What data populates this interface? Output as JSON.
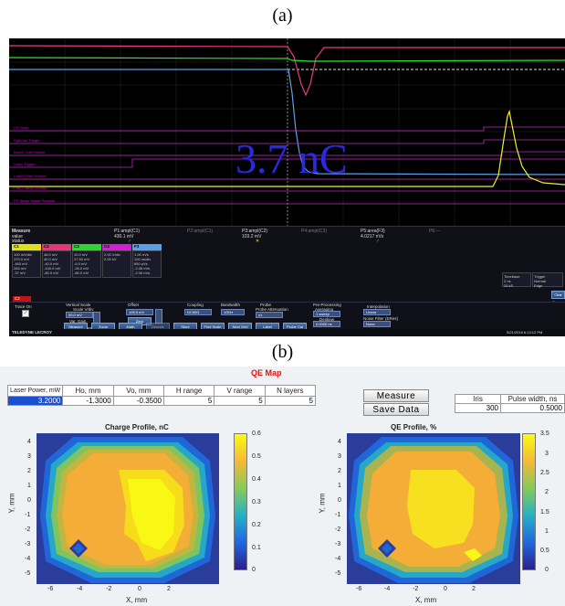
{
  "labels": {
    "a": "(a)",
    "b": "(b)"
  },
  "scope": {
    "annotation": "3.7 nC",
    "trace_labels": [
      "Ch Slope",
      "Cathode Trigger",
      "Bunch Gate Marker",
      "Laser Trigger",
      "Laser Pulse Monitor",
      "Fast Charge Monitor",
      "FC Beam Signal Readout"
    ],
    "measure": {
      "title": "Measure",
      "rows": [
        "value",
        "status"
      ],
      "params": [
        {
          "label": "P1:ampl(C1)",
          "value": "430.1 mV",
          "status": "✓"
        },
        {
          "label": "P2:ampl(C1)",
          "value": "---",
          "status": ""
        },
        {
          "label": "P3:ampl(C2)",
          "value": "103.2 mV",
          "status": "✕"
        },
        {
          "label": "P4:ampl(C3)",
          "value": "---",
          "status": ""
        },
        {
          "label": "P5:area(F3)",
          "value": "4.0217 nVs",
          "status": "✓"
        },
        {
          "label": "P6:---",
          "value": "",
          "status": ""
        }
      ]
    },
    "channels": [
      {
        "name": "C1",
        "color": "#e0e01a",
        "vals": [
          "100 mV/div",
          "370.0 mV",
          "-460 mV",
          "284 mV",
          "-37 mV"
        ]
      },
      {
        "name": "C2",
        "color": "#e4347a",
        "vals": [
          "48.0 mV",
          "40.0 mV",
          "-40.0 mV",
          "-140.0 mV",
          "-80.0 mV"
        ]
      },
      {
        "name": "C3",
        "color": "#30d430",
        "vals": [
          "10.0 mV",
          "27.50 mV",
          "-6.0 mV",
          "-26.0 mV",
          "-80.0 mV"
        ]
      },
      {
        "name": "C4",
        "color": "#d020d0",
        "vals": [
          "2.00 V/div",
          "2.00 kV",
          "",
          "",
          ""
        ]
      },
      {
        "name": "F3",
        "color": "#5aa0e8",
        "vals": [
          "1.00 nVs",
          "100 ns/div",
          "650 pVs",
          "-2.06 nVs",
          "-2.06 nVs"
        ]
      }
    ],
    "timebase": {
      "label": "Timebase",
      "value": "2 ns",
      "rate": "25 kS",
      "rate2": "20 GS/s",
      "trigger": "Trigger",
      "mode": "Normal",
      "edge": "Edge"
    },
    "controls": {
      "tab": "C2",
      "trace_on": "Trace On",
      "vertical_scale": "Vertical Scale",
      "scale_vdiv": "Scale V/div",
      "scale_value": "50.0 mV",
      "var_gain": "Var. Gain",
      "offset": "Offset",
      "offset_value": "108.5 mV",
      "zero": "Zero",
      "coupling": "Coupling",
      "coupling_value": "DC50Ω",
      "bandwidth": "Bandwidth",
      "bandwidth_value": "1GHz",
      "probe": "Probe",
      "probe_atten": "Probe Attenuation",
      "probe_value": "x1",
      "preprocessing": "Pre-Processing",
      "averaging": "Averaging",
      "averaging_value": "1 sweep",
      "deskew": "Deskew",
      "deskew_value": "0.0000 ns",
      "invert": "Invert",
      "interpolation": "Interpolation",
      "interp_value": "Linear",
      "noise_filter": "Noise Filter (ERes)",
      "noise_value": "None",
      "actions": "Actions for trace C2",
      "buttons": [
        "Measure",
        "Zoom",
        "Math",
        "Decode",
        "Store",
        "Find Scale",
        "Next Grid",
        "Label",
        "Probe Cal"
      ],
      "clear": "Clear Sweeps"
    },
    "brand": "TELEDYNE LECROY",
    "timestamp": "5/21/2018 6:13:12 PM"
  },
  "qe": {
    "title": "QE Map",
    "params_table": {
      "headers": [
        "Laser Power, mW",
        "Ho, mm",
        "Vo, mm",
        "H range",
        "V range",
        "N layers"
      ],
      "values": [
        "3.2000",
        "-1.3000",
        "-0.3500",
        "5",
        "5",
        "5"
      ]
    },
    "measure_button": "Measure",
    "save_button": "Save Data",
    "iris_table": {
      "headers": [
        "Iris",
        "Pulse width, ns"
      ],
      "values": [
        "300",
        "0.5000"
      ]
    },
    "left_plot": {
      "title": "Charge Profile, nC",
      "ylabel": "Y, mm",
      "xlabel": "X, mm",
      "yticks": [
        "4",
        "3",
        "2",
        "1",
        "0",
        "-1",
        "-2",
        "-3",
        "-4",
        "-5"
      ],
      "xticks": [
        "-6",
        "-4",
        "-2",
        "0",
        "2"
      ],
      "cbar_ticks": [
        "0.6",
        "0.5",
        "0.4",
        "0.3",
        "0.2",
        "0.1",
        "0"
      ]
    },
    "right_plot": {
      "title": "QE Profile, %",
      "ylabel": "Y, mm",
      "xlabel": "X, mm",
      "yticks": [
        "4",
        "3",
        "2",
        "1",
        "0",
        "-1",
        "-2",
        "-3",
        "-4",
        "-5"
      ],
      "xticks": [
        "-6",
        "-4",
        "-2",
        "0",
        "2"
      ],
      "cbar_ticks": [
        "3.5",
        "3",
        "2.5",
        "2",
        "1.5",
        "1",
        "0.5",
        "0"
      ]
    },
    "colors": {
      "title": "#e21212",
      "selected_cell": "#1b4fd1"
    }
  }
}
